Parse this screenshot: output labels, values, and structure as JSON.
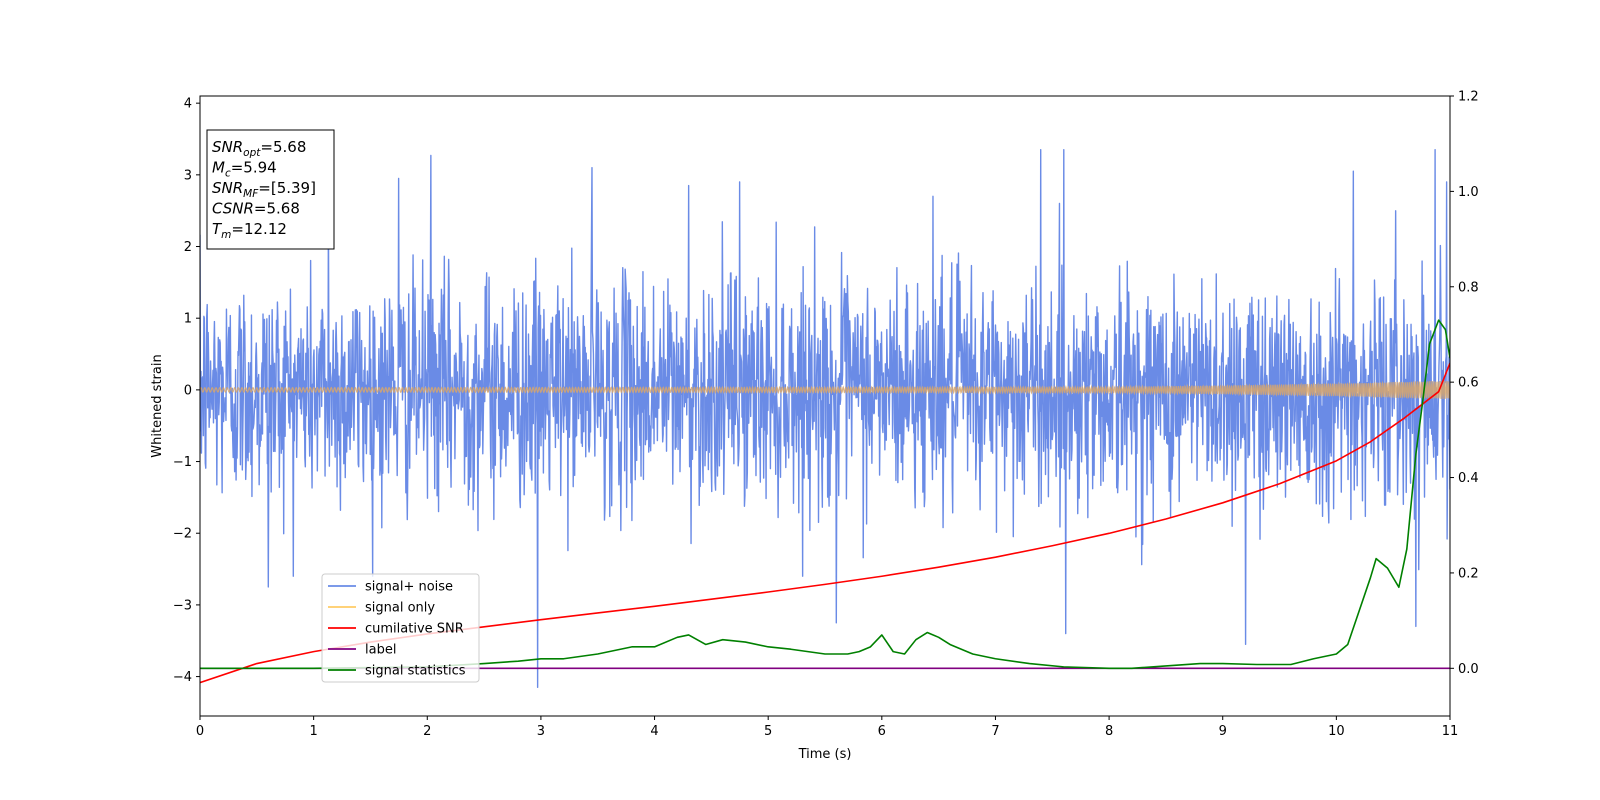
{
  "chart_data": {
    "type": "line",
    "xlabel": "Time (s)",
    "ylabel": "Whitened strain",
    "xlim": [
      0,
      11
    ],
    "ylim": [
      -4.55,
      4.1
    ],
    "y2lim": [
      -0.1,
      1.2
    ],
    "x_ticks": [
      0,
      1,
      2,
      3,
      4,
      5,
      6,
      7,
      8,
      9,
      10,
      11
    ],
    "y_ticks": [
      -4,
      -3,
      -2,
      -1,
      0,
      1,
      2,
      3,
      4
    ],
    "y2_ticks": [
      0.0,
      0.2,
      0.4,
      0.6,
      0.8,
      1.0,
      1.2
    ],
    "x_tick_labels": [
      "0",
      "1",
      "2",
      "3",
      "4",
      "5",
      "6",
      "7",
      "8",
      "9",
      "10",
      "11"
    ],
    "y_tick_labels": [
      "−4",
      "−3",
      "−2",
      "−1",
      "0",
      "1",
      "2",
      "3",
      "4"
    ],
    "y2_tick_labels": [
      "0.0",
      "0.2",
      "0.4",
      "0.6",
      "0.8",
      "1.0",
      "1.2"
    ],
    "legend_position": "lower-left",
    "annotation": [
      {
        "name": "SNR",
        "sub": "opt",
        "value": "=5.68"
      },
      {
        "name": "M",
        "sub": "c",
        "value": "=5.94"
      },
      {
        "name": "SNR",
        "sub": "MF",
        "value": "=[5.39]"
      },
      {
        "name": "CSNR",
        "sub": "",
        "value": "=5.68"
      },
      {
        "name": "T",
        "sub": "m",
        "value": "=12.12"
      }
    ],
    "series": [
      {
        "name": "signal+ noise",
        "color": "#6a8be6",
        "axis": "left",
        "typical_range": [
          -1.6,
          1.6
        ],
        "extremes": [
          {
            "x": 0.6,
            "y": -2.75
          },
          {
            "x": 1.13,
            "y": 2.5
          },
          {
            "x": 1.75,
            "y": 2.95
          },
          {
            "x": 2.03,
            "y": 3.27
          },
          {
            "x": 2.97,
            "y": -4.15
          },
          {
            "x": 3.45,
            "y": 3.1
          },
          {
            "x": 4.3,
            "y": 2.85
          },
          {
            "x": 4.75,
            "y": 2.9
          },
          {
            "x": 5.6,
            "y": -3.25
          },
          {
            "x": 6.45,
            "y": 2.7
          },
          {
            "x": 7.4,
            "y": 3.35
          },
          {
            "x": 7.6,
            "y": 3.35
          },
          {
            "x": 7.62,
            "y": -3.4
          },
          {
            "x": 9.2,
            "y": -3.55
          },
          {
            "x": 10.15,
            "y": 3.05
          },
          {
            "x": 10.7,
            "y": -3.3
          },
          {
            "x": 10.87,
            "y": 3.35
          },
          {
            "x": 10.97,
            "y": 2.9
          }
        ]
      },
      {
        "name": "signal only",
        "color": "#ffcc66",
        "axis": "left",
        "amplitude": [
          [
            0,
            0.03
          ],
          [
            8,
            0.04
          ],
          [
            9,
            0.06
          ],
          [
            10,
            0.09
          ],
          [
            11,
            0.13
          ]
        ]
      },
      {
        "name": "cumilative SNR",
        "color": "#ff0000",
        "axis": "right",
        "x": [
          0,
          0.5,
          1,
          1.5,
          2,
          2.5,
          3,
          3.5,
          4,
          4.5,
          5,
          5.5,
          6,
          6.5,
          7,
          7.5,
          8,
          8.5,
          9,
          9.5,
          10,
          10.3,
          10.6,
          10.9,
          11
        ],
        "values": [
          -0.03,
          0.01,
          0.035,
          0.055,
          0.072,
          0.087,
          0.102,
          0.116,
          0.13,
          0.145,
          0.16,
          0.176,
          0.193,
          0.212,
          0.233,
          0.257,
          0.283,
          0.313,
          0.347,
          0.387,
          0.435,
          0.475,
          0.525,
          0.58,
          0.64
        ]
      },
      {
        "name": "label",
        "color": "#800080",
        "axis": "right",
        "x": [
          0,
          11
        ],
        "values": [
          0,
          0
        ]
      },
      {
        "name": "signal statistics",
        "color": "#008000",
        "axis": "right",
        "x": [
          0,
          1,
          2,
          2.5,
          2.8,
          3.0,
          3.2,
          3.5,
          3.8,
          4.0,
          4.2,
          4.3,
          4.45,
          4.6,
          4.8,
          5.0,
          5.2,
          5.5,
          5.7,
          5.8,
          5.9,
          6.0,
          6.1,
          6.2,
          6.3,
          6.4,
          6.5,
          6.6,
          6.8,
          7.0,
          7.3,
          7.6,
          8.0,
          8.2,
          8.5,
          8.8,
          9.0,
          9.3,
          9.6,
          9.8,
          10.0,
          10.1,
          10.2,
          10.3,
          10.35,
          10.45,
          10.55,
          10.62,
          10.7,
          10.76,
          10.82,
          10.9,
          10.96,
          11.0
        ],
        "values": [
          0,
          0,
          0.003,
          0.01,
          0.015,
          0.02,
          0.02,
          0.03,
          0.045,
          0.045,
          0.065,
          0.07,
          0.05,
          0.06,
          0.055,
          0.045,
          0.04,
          0.03,
          0.03,
          0.035,
          0.045,
          0.07,
          0.035,
          0.03,
          0.06,
          0.075,
          0.065,
          0.05,
          0.03,
          0.02,
          0.01,
          0.003,
          0.0,
          0.0,
          0.005,
          0.01,
          0.01,
          0.008,
          0.008,
          0.02,
          0.03,
          0.05,
          0.12,
          0.19,
          0.23,
          0.21,
          0.17,
          0.25,
          0.45,
          0.56,
          0.68,
          0.73,
          0.71,
          0.65
        ]
      }
    ]
  }
}
